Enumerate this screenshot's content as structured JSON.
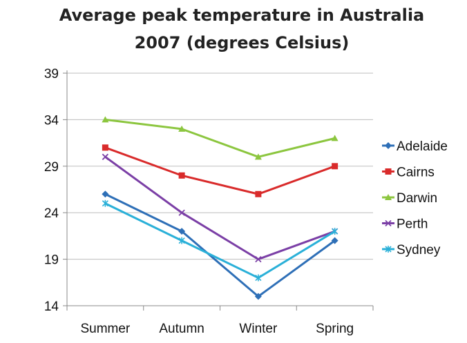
{
  "chart_data": {
    "type": "line",
    "title_line1": "Average peak temperature in Australia",
    "title_line2": "2007 (degrees Celsius)",
    "categories": [
      "Summer",
      "Autumn",
      "Winter",
      "Spring"
    ],
    "ylim": [
      14,
      39
    ],
    "yticks": [
      "39",
      "34",
      "29",
      "24",
      "19",
      "14"
    ],
    "grid": true,
    "legend_position": "right",
    "series": [
      {
        "name": "Adelaide",
        "values": [
          26,
          22,
          15,
          21
        ],
        "color": "#2e6fb7",
        "marker": "diamond"
      },
      {
        "name": "Cairns",
        "values": [
          31,
          28,
          26,
          29
        ],
        "color": "#d92b2b",
        "marker": "square"
      },
      {
        "name": "Darwin",
        "values": [
          34,
          33,
          30,
          32
        ],
        "color": "#8cc63f",
        "marker": "triangle"
      },
      {
        "name": "Perth",
        "values": [
          30,
          24,
          19,
          22
        ],
        "color": "#7b3fa6",
        "marker": "x"
      },
      {
        "name": "Sydney",
        "values": [
          25,
          21,
          17,
          22
        ],
        "color": "#2ab0d8",
        "marker": "star"
      }
    ]
  }
}
